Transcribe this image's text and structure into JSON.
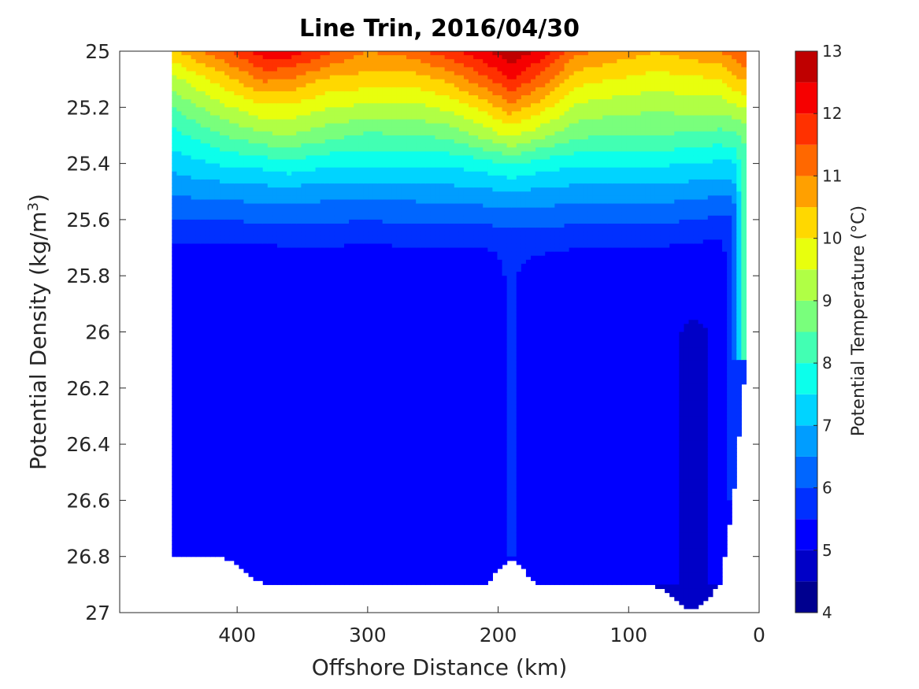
{
  "chart_data": {
    "type": "heatmap",
    "subtype": "filled-contour",
    "title": "Line Trin, 2016/04/30",
    "xlabel": "Offshore Distance (km)",
    "ylabel_main": "Potential Density (kg/m",
    "ylabel_sup": "3",
    "ylabel_close": ")",
    "colorbar_label": "Potential Temperature (°C)",
    "xlim": [
      490,
      0
    ],
    "x_reversed": true,
    "ylim": [
      25,
      27
    ],
    "y_reversed": true,
    "xticks": [
      400,
      300,
      200,
      100,
      0
    ],
    "yticks": [
      25,
      25.2,
      25.4,
      25.6,
      25.8,
      26,
      26.2,
      26.4,
      26.6,
      26.8,
      27
    ],
    "ytick_labels": [
      "25",
      "25.2",
      "25.4",
      "25.6",
      "25.8",
      "26",
      "26.2",
      "26.4",
      "26.6",
      "26.8",
      "27"
    ],
    "colorbar_range": [
      4,
      13
    ],
    "colorbar_ticks": [
      4,
      5,
      6,
      7,
      8,
      9,
      10,
      11,
      12,
      13
    ],
    "contour_step": 0.5,
    "contour_levels": [
      4,
      4.5,
      5,
      5.5,
      6,
      6.5,
      7,
      7.5,
      8,
      8.5,
      9,
      9.5,
      10,
      10.5,
      11,
      11.5,
      12,
      12.5,
      13
    ],
    "band_colors": [
      "#00008f",
      "#0000c7",
      "#0000ff",
      "#0030ff",
      "#0066ff",
      "#009dff",
      "#00d4ff",
      "#0cffeb",
      "#42ffb3",
      "#79ff7c",
      "#b0ff45",
      "#e8ff0d",
      "#ffd800",
      "#ffa000",
      "#ff6800",
      "#ff3100",
      "#f60000",
      "#bf0000"
    ],
    "profiles": [
      {
        "x": 450,
        "t": [
          10.4,
          9.3,
          8.5,
          7.8,
          7.2,
          6.6,
          6.0,
          5.4
        ],
        "bottom": 26.8
      },
      {
        "x": 410,
        "t": [
          11.4,
          10.3,
          9.4,
          8.5,
          7.6,
          6.7,
          6.0,
          5.4
        ],
        "bottom": 26.8
      },
      {
        "x": 380,
        "t": [
          12.3,
          11.1,
          9.9,
          8.9,
          7.7,
          6.8,
          6.1,
          5.4,
          5.1
        ],
        "bottom": 26.9
      },
      {
        "x": 360,
        "t": [
          12.3,
          11.0,
          9.9,
          9.0,
          7.9,
          6.8,
          6.1,
          5.5,
          5.2
        ],
        "bottom": 26.9
      },
      {
        "x": 330,
        "t": [
          11.6,
          10.4,
          9.5,
          8.7,
          7.6,
          6.7,
          6.1,
          5.5,
          5.2
        ],
        "bottom": 26.9
      },
      {
        "x": 300,
        "t": [
          11.0,
          10.3,
          9.4,
          8.4,
          7.6,
          6.7,
          6.0,
          5.4,
          5.1
        ],
        "bottom": 26.9
      },
      {
        "x": 270,
        "t": [
          11.2,
          10.2,
          9.3,
          8.5,
          7.6,
          6.7,
          6.1,
          5.5,
          5.2
        ],
        "bottom": 26.9
      },
      {
        "x": 240,
        "t": [
          11.8,
          10.6,
          9.6,
          8.6,
          7.6,
          6.8,
          6.1,
          5.5,
          5.2
        ],
        "bottom": 26.9
      },
      {
        "x": 210,
        "t": [
          12.4,
          11.4,
          10.2,
          9.2,
          7.8,
          6.9,
          6.1,
          5.5,
          5.2
        ],
        "bottom": 26.9
      },
      {
        "x": 190,
        "t": [
          12.9,
          12.0,
          10.8,
          9.6,
          8.1,
          7.0,
          6.2,
          5.6
        ],
        "bottom": 26.8
      },
      {
        "x": 170,
        "t": [
          12.4,
          11.4,
          10.3,
          9.2,
          7.8,
          6.9,
          6.2,
          5.6,
          5.2
        ],
        "bottom": 26.9
      },
      {
        "x": 140,
        "t": [
          11.2,
          10.2,
          9.4,
          8.6,
          7.6,
          6.8,
          6.1,
          5.5,
          5.2
        ],
        "bottom": 26.9
      },
      {
        "x": 110,
        "t": [
          10.8,
          10.0,
          9.2,
          8.5,
          7.6,
          6.8,
          6.1,
          5.5,
          5.2
        ],
        "bottom": 26.9
      },
      {
        "x": 80,
        "t": [
          10.5,
          9.8,
          9.1,
          8.5,
          7.6,
          6.8,
          6.1,
          5.5,
          5.2
        ],
        "bottom": 26.9
      },
      {
        "x": 50,
        "t": [
          10.8,
          9.9,
          9.2,
          8.4,
          7.5,
          6.7,
          6.0,
          5.4,
          5.2,
          5.1,
          4.9
        ],
        "bottom": 27.0
      },
      {
        "x": 30,
        "t": [
          11.0,
          10.0,
          9.2,
          8.3,
          7.4,
          6.6,
          5.9,
          5.3,
          5.1
        ],
        "bottom": 26.9
      },
      {
        "x": 20,
        "t": [
          11.2,
          10.3,
          9.4,
          8.4,
          7.4,
          6.6,
          5.9
        ],
        "bottom": 26.6
      },
      {
        "x": 10,
        "t": [
          11.6,
          10.6,
          9.6,
          8.6
        ],
        "bottom": 26.1
      }
    ],
    "profile_y_step": 0.1,
    "grid": false,
    "colorbar_location": "right"
  }
}
